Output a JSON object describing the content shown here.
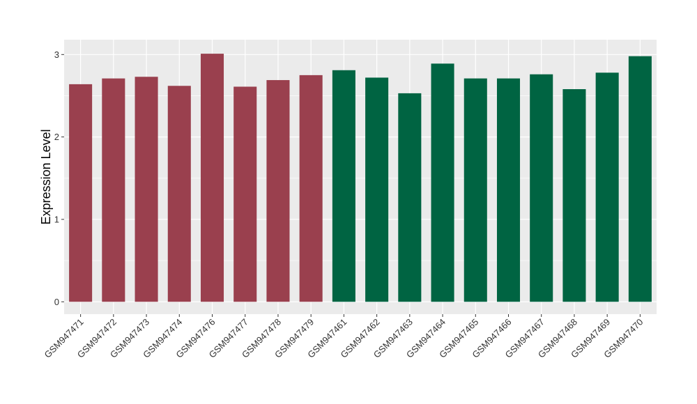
{
  "chart_data": {
    "type": "bar",
    "title": "",
    "xlabel": "",
    "ylabel": "Expression Level",
    "ylim": [
      -0.15,
      3.18
    ],
    "yticks": [
      0,
      1,
      2,
      3
    ],
    "grid": true,
    "legend": "none",
    "categories": [
      "GSM947471",
      "GSM947472",
      "GSM947473",
      "GSM947474",
      "GSM947476",
      "GSM947477",
      "GSM947478",
      "GSM947479",
      "GSM947461",
      "GSM947462",
      "GSM947463",
      "GSM947464",
      "GSM947465",
      "GSM947466",
      "GSM947467",
      "GSM947468",
      "GSM947469",
      "GSM947470"
    ],
    "values": [
      2.64,
      2.71,
      2.73,
      2.62,
      3.01,
      2.61,
      2.69,
      2.75,
      2.81,
      2.72,
      2.53,
      2.89,
      2.71,
      2.71,
      2.76,
      2.58,
      2.78,
      2.98
    ],
    "groups": [
      "g1",
      "g1",
      "g1",
      "g1",
      "g1",
      "g1",
      "g1",
      "g1",
      "g2",
      "g2",
      "g2",
      "g2",
      "g2",
      "g2",
      "g2",
      "g2",
      "g2",
      "g2"
    ],
    "colors": {
      "g1": "#9a404e",
      "g2": "#006442",
      "panel": "#ebebeb",
      "grid": "#ffffff"
    }
  }
}
